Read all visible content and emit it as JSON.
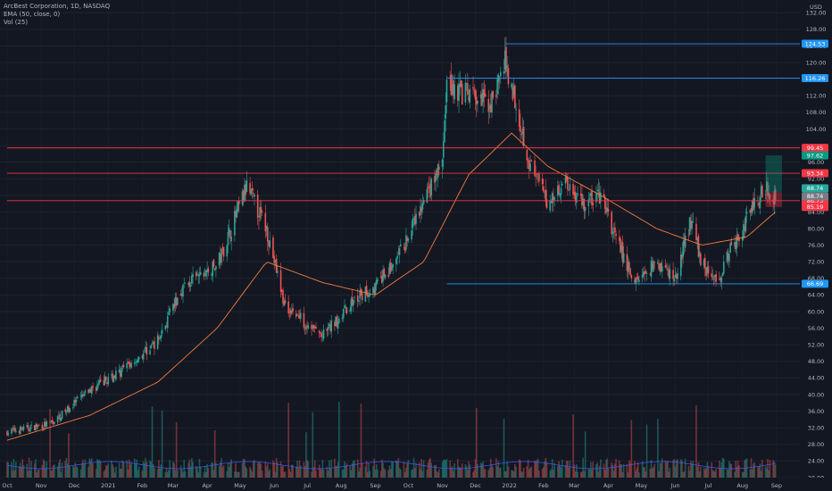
{
  "legend": {
    "symbol": "ArcBest Corporation, 1D, NASDAQ",
    "ema": "EMA (50, close, 0)",
    "vol": "Vol (25)"
  },
  "colors": {
    "background": "#131722",
    "up": "#26a69a",
    "down": "#ef5350",
    "ema": "#f57c3b",
    "support_line": "#2196f3",
    "resistance_line": "#f23645",
    "volume_ma": "#3d5afe"
  },
  "chart_data": {
    "type": "candlestick",
    "currency_label": "USD",
    "y_ticks": [
      "132.00",
      "128.00",
      "124.00",
      "120.00",
      "116.00",
      "112.00",
      "108.00",
      "104.00",
      "100.00",
      "96.00",
      "92.00",
      "88.00",
      "84.00",
      "80.00",
      "76.00",
      "72.00",
      "68.00",
      "64.00",
      "60.00",
      "56.00",
      "52.00",
      "48.00",
      "44.00",
      "40.00",
      "36.00",
      "32.00",
      "28.00",
      "24.00",
      "20.00"
    ],
    "ylim": [
      20,
      134
    ],
    "x_ticks": [
      "Oct",
      "Nov",
      "Dec",
      "2021",
      "Feb",
      "Mar",
      "Apr",
      "May",
      "Jun",
      "Jul",
      "Aug",
      "Sep",
      "Oct",
      "Nov",
      "Dec",
      "2022",
      "Feb",
      "Mar",
      "Apr",
      "May",
      "Jun",
      "Jul",
      "Aug",
      "Sep"
    ],
    "price_path": [
      [
        "2020-10-01",
        31
      ],
      [
        "2020-11-10",
        33
      ],
      [
        "2020-12-15",
        41
      ],
      [
        "2021-01-15",
        46
      ],
      [
        "2021-02-15",
        53
      ],
      [
        "2021-03-10",
        66
      ],
      [
        "2021-04-10",
        71
      ],
      [
        "2021-05-07",
        90
      ],
      [
        "2021-05-25",
        80
      ],
      [
        "2021-06-10",
        62
      ],
      [
        "2021-07-01",
        57
      ],
      [
        "2021-07-15",
        54
      ],
      [
        "2021-08-10",
        62
      ],
      [
        "2021-09-01",
        66
      ],
      [
        "2021-09-20",
        72
      ],
      [
        "2021-10-15",
        86
      ],
      [
        "2021-11-01",
        96
      ],
      [
        "2021-11-05",
        115
      ],
      [
        "2021-11-25",
        112
      ],
      [
        "2021-12-15",
        110
      ],
      [
        "2021-12-28",
        120
      ],
      [
        "2022-01-03",
        115
      ],
      [
        "2022-01-20",
        95
      ],
      [
        "2022-02-05",
        86
      ],
      [
        "2022-02-20",
        92
      ],
      [
        "2022-03-10",
        86
      ],
      [
        "2022-03-25",
        88
      ],
      [
        "2022-04-10",
        76
      ],
      [
        "2022-04-25",
        67
      ],
      [
        "2022-05-15",
        72
      ],
      [
        "2022-06-01",
        68
      ],
      [
        "2022-06-15",
        82
      ],
      [
        "2022-06-25",
        72
      ],
      [
        "2022-07-08",
        67
      ],
      [
        "2022-07-20",
        74
      ],
      [
        "2022-08-05",
        82
      ],
      [
        "2022-08-20",
        90
      ],
      [
        "2022-08-31",
        88
      ]
    ],
    "ema_path": [
      [
        "2020-10-01",
        29
      ],
      [
        "2020-12-15",
        35
      ],
      [
        "2021-02-15",
        43
      ],
      [
        "2021-04-10",
        56
      ],
      [
        "2021-05-25",
        72
      ],
      [
        "2021-07-15",
        67
      ],
      [
        "2021-09-01",
        64
      ],
      [
        "2021-10-15",
        72
      ],
      [
        "2021-11-25",
        93
      ],
      [
        "2022-01-03",
        103
      ],
      [
        "2022-02-05",
        95
      ],
      [
        "2022-03-25",
        88
      ],
      [
        "2022-05-15",
        80
      ],
      [
        "2022-06-25",
        76
      ],
      [
        "2022-08-05",
        78
      ],
      [
        "2022-08-31",
        84
      ]
    ],
    "levels": [
      {
        "label": "124.53",
        "value": 124.53,
        "color": "#2196f3",
        "start": "2021-12-28"
      },
      {
        "label": "116.26",
        "value": 116.26,
        "color": "#2196f3",
        "start": "2021-11-05"
      },
      {
        "label": "99.45",
        "value": 99.45,
        "color": "#f23645",
        "start": "2020-10-01"
      },
      {
        "label": "93.34",
        "value": 93.34,
        "color": "#f23645",
        "start": "2020-10-01"
      },
      {
        "label": "86.73",
        "value": 86.73,
        "color": "#f23645",
        "start": "2020-10-01"
      },
      {
        "label": "66.69",
        "value": 66.69,
        "color": "#2196f3",
        "start": "2021-11-05"
      }
    ],
    "price_tags": [
      {
        "label": "97.62",
        "value": 97.62,
        "color": "#089981"
      },
      {
        "label": "88.74",
        "value": 88.74,
        "color": "#26a69a"
      },
      {
        "label": "88.74",
        "value": 88.74,
        "color": "#787b86"
      },
      {
        "label": "85.19",
        "value": 85.19,
        "color": "#f23645"
      }
    ],
    "position": {
      "start": "2022-08-22",
      "end": "2022-09-06",
      "entry": 88.74,
      "target": 97.62,
      "stop": 85.19
    }
  }
}
